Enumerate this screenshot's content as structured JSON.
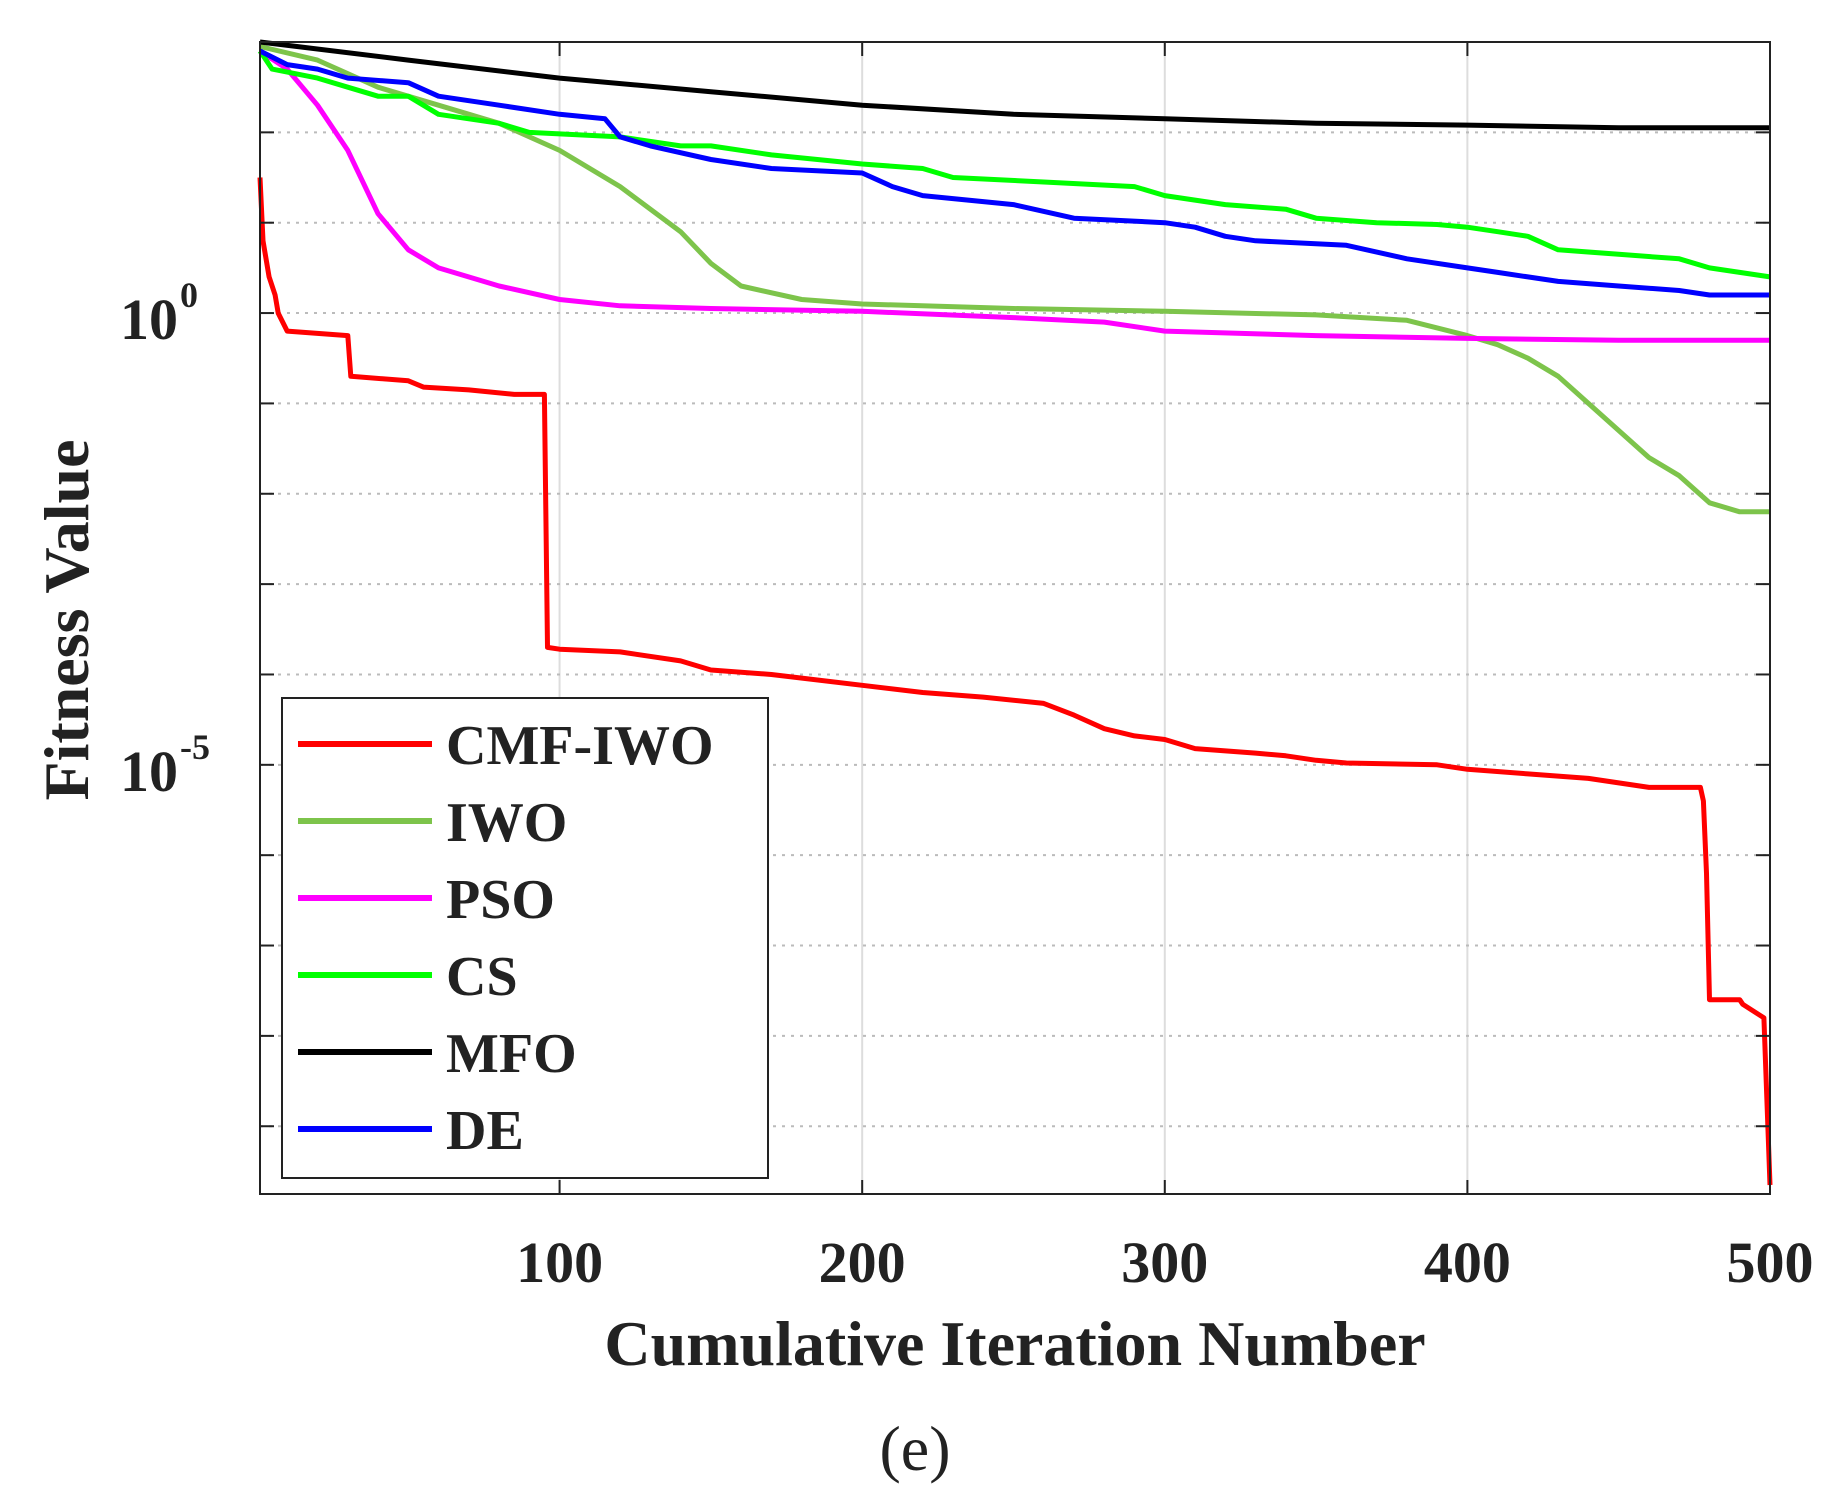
{
  "chart_data": {
    "type": "line",
    "title": "",
    "xlabel": "Cumulative Iteration Number",
    "ylabel": "Fitness Value",
    "caption": "(e)",
    "xscale": "linear",
    "yscale": "log",
    "xlim": [
      1,
      500
    ],
    "ylim_log10": [
      -9.75,
      3
    ],
    "x_ticks": [
      100,
      200,
      300,
      400,
      500
    ],
    "x_tick_labels": [
      "100",
      "200",
      "300",
      "400",
      "500"
    ],
    "y_ticks_log10": [
      0,
      -5
    ],
    "y_tick_labels": [
      {
        "base": "10",
        "exp": "0"
      },
      {
        "base": "10",
        "exp": "-5"
      }
    ],
    "y_grid_log10": [
      2,
      1,
      0,
      -1,
      -2,
      -3,
      -4,
      -5,
      -6,
      -7,
      -8,
      -9
    ],
    "grid": true,
    "legend_position": "bottom-left",
    "series": [
      {
        "name": "CMF-IWO",
        "color": "#ff0000",
        "x": [
          1,
          2,
          4,
          6,
          7,
          10,
          30,
          31,
          50,
          55,
          70,
          85,
          95,
          96,
          100,
          120,
          140,
          150,
          170,
          200,
          220,
          240,
          260,
          270,
          280,
          290,
          300,
          310,
          330,
          340,
          350,
          360,
          390,
          400,
          420,
          440,
          460,
          477,
          478,
          479,
          480,
          490,
          491,
          498,
          500
        ],
        "log10_y": [
          1.5,
          0.8,
          0.4,
          0.2,
          0.0,
          -0.2,
          -0.25,
          -0.7,
          -0.75,
          -0.82,
          -0.85,
          -0.9,
          -0.9,
          -3.7,
          -3.72,
          -3.75,
          -3.85,
          -3.95,
          -4.0,
          -4.12,
          -4.2,
          -4.25,
          -4.32,
          -4.45,
          -4.6,
          -4.68,
          -4.72,
          -4.82,
          -4.87,
          -4.9,
          -4.95,
          -4.98,
          -5.0,
          -5.05,
          -5.1,
          -5.15,
          -5.25,
          -5.25,
          -5.4,
          -6.2,
          -7.6,
          -7.6,
          -7.65,
          -7.8,
          -9.65
        ]
      },
      {
        "name": "IWO",
        "color": "#7dc44b",
        "x": [
          1,
          20,
          40,
          60,
          80,
          100,
          120,
          140,
          150,
          160,
          180,
          200,
          250,
          300,
          350,
          380,
          400,
          410,
          420,
          430,
          440,
          450,
          460,
          470,
          480,
          490,
          500
        ],
        "log10_y": [
          2.95,
          2.8,
          2.5,
          2.3,
          2.1,
          1.8,
          1.4,
          0.9,
          0.55,
          0.3,
          0.15,
          0.1,
          0.05,
          0.02,
          -0.02,
          -0.08,
          -0.25,
          -0.35,
          -0.5,
          -0.7,
          -1.0,
          -1.3,
          -1.6,
          -1.8,
          -2.1,
          -2.2,
          -2.2
        ]
      },
      {
        "name": "PSO",
        "color": "#ff00ff",
        "x": [
          1,
          10,
          20,
          30,
          40,
          50,
          60,
          80,
          100,
          120,
          150,
          200,
          250,
          280,
          300,
          350,
          400,
          450,
          500
        ],
        "log10_y": [
          2.9,
          2.7,
          2.3,
          1.8,
          1.1,
          0.7,
          0.5,
          0.3,
          0.15,
          0.08,
          0.05,
          0.02,
          -0.05,
          -0.1,
          -0.2,
          -0.25,
          -0.28,
          -0.3,
          -0.3
        ]
      },
      {
        "name": "CS",
        "color": "#00ff00",
        "x": [
          1,
          5,
          20,
          30,
          40,
          50,
          60,
          80,
          90,
          120,
          140,
          150,
          170,
          200,
          220,
          230,
          260,
          290,
          300,
          320,
          340,
          350,
          370,
          390,
          400,
          410,
          420,
          430,
          450,
          470,
          480,
          490,
          500
        ],
        "log10_y": [
          2.9,
          2.7,
          2.6,
          2.5,
          2.4,
          2.4,
          2.2,
          2.1,
          2.0,
          1.95,
          1.85,
          1.85,
          1.75,
          1.65,
          1.6,
          1.5,
          1.45,
          1.4,
          1.3,
          1.2,
          1.15,
          1.05,
          1.0,
          0.98,
          0.95,
          0.9,
          0.85,
          0.7,
          0.65,
          0.6,
          0.5,
          0.45,
          0.4
        ]
      },
      {
        "name": "MFO",
        "color": "#000000",
        "x": [
          1,
          50,
          100,
          150,
          200,
          250,
          300,
          350,
          400,
          450,
          500
        ],
        "log10_y": [
          3.0,
          2.8,
          2.6,
          2.45,
          2.3,
          2.2,
          2.15,
          2.1,
          2.08,
          2.05,
          2.05
        ]
      },
      {
        "name": "DE",
        "color": "#0000ff",
        "x": [
          1,
          10,
          20,
          30,
          50,
          60,
          80,
          100,
          115,
          120,
          130,
          150,
          170,
          200,
          210,
          220,
          250,
          270,
          300,
          310,
          320,
          330,
          360,
          380,
          400,
          410,
          420,
          430,
          450,
          470,
          480,
          500
        ],
        "log10_y": [
          2.9,
          2.75,
          2.7,
          2.6,
          2.55,
          2.4,
          2.3,
          2.2,
          2.15,
          1.95,
          1.85,
          1.7,
          1.6,
          1.55,
          1.4,
          1.3,
          1.2,
          1.05,
          1.0,
          0.95,
          0.85,
          0.8,
          0.75,
          0.6,
          0.5,
          0.45,
          0.4,
          0.35,
          0.3,
          0.25,
          0.2,
          0.2
        ]
      }
    ]
  }
}
